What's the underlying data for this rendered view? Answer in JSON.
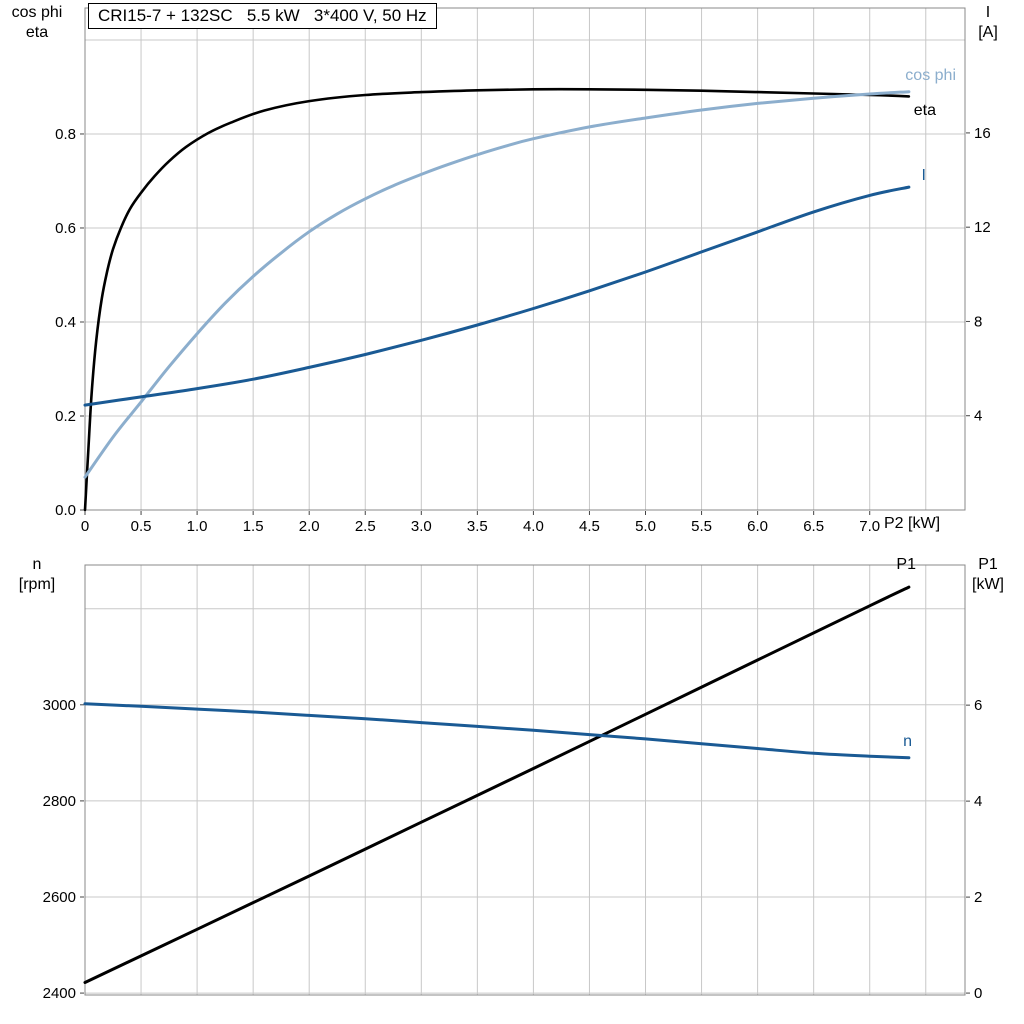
{
  "header": {
    "title": "CRI15-7 + 132SC   5.5 kW   3*400 V, 50 Hz"
  },
  "top_chart_headers": {
    "left_line1": "cos phi",
    "left_line2": "eta",
    "right_line1": "I",
    "right_line2": "[A]"
  },
  "bottom_chart_headers": {
    "left_line1": "n",
    "left_line2": "[rpm]",
    "right_line1": "P1",
    "right_line2": "[kW]"
  },
  "labels": {
    "x_axis": "P2 [kW]",
    "curve_cos_phi": "cos phi",
    "curve_eta": "eta",
    "curve_current": "I",
    "curve_p1": "P1",
    "curve_n": "n"
  },
  "colors": {
    "eta": "#000000",
    "cos_phi": "#8caecd",
    "current": "#1a5a94",
    "p1": "#000000",
    "n": "#1a5a94",
    "grid": "#c8c8c8",
    "frame": "#888888",
    "tick": "#444444",
    "text": "#000000"
  },
  "chart_data": [
    {
      "type": "line",
      "title": "CRI15-7 + 132SC   5.5 kW   3*400 V, 50 Hz",
      "xlabel": "P2 [kW]",
      "ylabel_left": "cos phi / eta",
      "ylabel_right": "I [A]",
      "xlim": [
        0,
        7.85
      ],
      "ylim_left": [
        0,
        1.068
      ],
      "ylim_right": [
        0,
        21.3
      ],
      "grid": true,
      "xtick_values": [
        0,
        0.5,
        1,
        1.5,
        2,
        2.5,
        3,
        3.5,
        4,
        4.5,
        5,
        5.5,
        6,
        6.5,
        7
      ],
      "xtick_labels": [
        "0",
        "0.5",
        "1.0",
        "1.5",
        "2.0",
        "2.5",
        "3.0",
        "3.5",
        "4.0",
        "4.5",
        "5.0",
        "5.5",
        "6.0",
        "6.5",
        "7.0"
      ],
      "xgrid_values": [
        0.5,
        1,
        1.5,
        2,
        2.5,
        3,
        3.5,
        4,
        4.5,
        5,
        5.5,
        6,
        6.5,
        7,
        7.5
      ],
      "ytick_left_values": [
        0,
        0.2,
        0.4,
        0.6,
        0.8
      ],
      "ytick_left_labels": [
        "0.0",
        "0.2",
        "0.4",
        "0.6",
        "0.8"
      ],
      "ygrid_left_values": [
        0.2,
        0.4,
        0.6,
        0.8,
        1.0
      ],
      "ytick_right_values": [
        4,
        8,
        12,
        16
      ],
      "ytick_right_labels": [
        "4",
        "8",
        "12",
        "16"
      ],
      "series": [
        {
          "name": "eta",
          "axis": "left",
          "color": "#000000",
          "width": 2.6,
          "x": [
            0,
            0.03,
            0.06,
            0.1,
            0.15,
            0.2,
            0.25,
            0.32,
            0.4,
            0.5,
            0.62,
            0.75,
            0.9,
            1.1,
            1.3,
            1.6,
            2.0,
            2.5,
            3.0,
            3.5,
            4.0,
            4.5,
            5.0,
            5.5,
            6.0,
            6.5,
            7.0,
            7.35
          ],
          "y": [
            0,
            0.13,
            0.25,
            0.36,
            0.45,
            0.51,
            0.555,
            0.6,
            0.64,
            0.675,
            0.71,
            0.742,
            0.772,
            0.802,
            0.824,
            0.85,
            0.87,
            0.883,
            0.889,
            0.893,
            0.895,
            0.895,
            0.894,
            0.892,
            0.889,
            0.886,
            0.883,
            0.88
          ]
        },
        {
          "name": "cos phi",
          "axis": "left",
          "color": "#8caecd",
          "width": 3,
          "x": [
            0,
            0.25,
            0.5,
            0.75,
            1.0,
            1.25,
            1.5,
            1.75,
            2.0,
            2.25,
            2.5,
            2.75,
            3.0,
            3.25,
            3.5,
            3.75,
            4.0,
            4.5,
            5.0,
            5.5,
            6.0,
            6.5,
            7.0,
            7.35
          ],
          "y": [
            0.07,
            0.155,
            0.23,
            0.305,
            0.375,
            0.44,
            0.497,
            0.547,
            0.592,
            0.63,
            0.662,
            0.69,
            0.714,
            0.736,
            0.756,
            0.774,
            0.79,
            0.815,
            0.834,
            0.851,
            0.865,
            0.876,
            0.885,
            0.89
          ]
        },
        {
          "name": "I",
          "axis": "right",
          "color": "#1a5a94",
          "width": 3,
          "x": [
            0,
            0.5,
            1,
            1.5,
            2,
            2.5,
            3,
            3.5,
            4,
            4.5,
            5,
            5.5,
            6,
            6.5,
            7,
            7.35
          ],
          "y": [
            4.45,
            4.8,
            5.15,
            5.55,
            6.05,
            6.6,
            7.2,
            7.85,
            8.55,
            9.3,
            10.1,
            10.95,
            11.8,
            12.65,
            13.35,
            13.7
          ]
        }
      ]
    },
    {
      "type": "line",
      "title": "",
      "xlabel": "P2 [kW]",
      "ylabel_left": "n [rpm]",
      "ylabel_right": "P1 [kW]",
      "xlim": [
        0,
        7.85
      ],
      "ylim_left": [
        2396,
        3291
      ],
      "ylim_right": [
        -0.04,
        8.92
      ],
      "grid": true,
      "xtick_values": [],
      "xtick_labels": [],
      "xgrid_values": [
        0.5,
        1,
        1.5,
        2,
        2.5,
        3,
        3.5,
        4,
        4.5,
        5,
        5.5,
        6,
        6.5,
        7,
        7.5
      ],
      "ytick_left_values": [
        2400,
        2600,
        2800,
        3000
      ],
      "ytick_left_labels": [
        "2400",
        "2600",
        "2800",
        "3000"
      ],
      "ygrid_left_values": [
        2400,
        2600,
        2800,
        3000,
        3200
      ],
      "ytick_right_values": [
        0,
        2,
        4,
        6
      ],
      "ytick_right_labels": [
        "0",
        "2",
        "4",
        "6"
      ],
      "series": [
        {
          "name": "P1",
          "axis": "right",
          "color": "#000000",
          "width": 3,
          "x": [
            0,
            1,
            2,
            3,
            4,
            5,
            6,
            7,
            7.35
          ],
          "y": [
            0.22,
            1.33,
            2.44,
            3.56,
            4.68,
            5.81,
            6.94,
            8.07,
            8.46
          ]
        },
        {
          "name": "n",
          "axis": "left",
          "color": "#1a5a94",
          "width": 3,
          "x": [
            0,
            0.5,
            1,
            1.5,
            2,
            2.5,
            3,
            3.5,
            4,
            4.5,
            5,
            5.5,
            6,
            6.5,
            7,
            7.35
          ],
          "y": [
            3002,
            2997,
            2991,
            2985,
            2978,
            2971,
            2963,
            2955,
            2947,
            2938,
            2929,
            2919,
            2909,
            2899,
            2893,
            2890
          ]
        }
      ]
    }
  ]
}
